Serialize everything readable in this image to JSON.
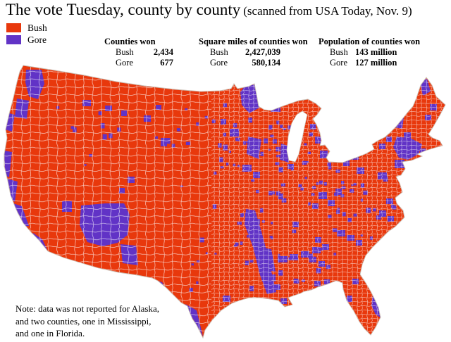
{
  "title": {
    "main": "The vote Tuesday, county by county",
    "source": "(scanned from USA Today, Nov. 9)"
  },
  "legend": {
    "items": [
      {
        "label": "Bush",
        "color": "#e8380c"
      },
      {
        "label": "Gore",
        "color": "#6133c6"
      }
    ]
  },
  "stats": [
    {
      "heading": "Counties won",
      "rows": [
        {
          "label": "Bush",
          "value": "2,434"
        },
        {
          "label": "Gore",
          "value": "677"
        }
      ]
    },
    {
      "heading": "Square miles of counties won",
      "rows": [
        {
          "label": "Bush",
          "value": "2,427,039"
        },
        {
          "label": "Gore",
          "value": "580,134"
        }
      ]
    },
    {
      "heading": "Population of counties won",
      "rows": [
        {
          "label": "Bush",
          "value": "143 million"
        },
        {
          "label": "Gore",
          "value": "127 million"
        }
      ]
    }
  ],
  "note": {
    "lines": [
      "Note: data was not reported for Alaska,",
      "and two counties, one in Mississippi,",
      "and one in Florida."
    ]
  },
  "map": {
    "description": "County-level choropleth map of the continental United States showing 2000 presidential election winner by county (red = Bush, purple = Gore)"
  }
}
